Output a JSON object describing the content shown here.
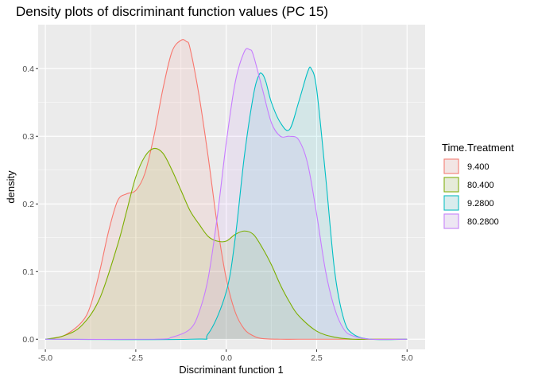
{
  "chart_data": {
    "type": "area",
    "title": "Density plots of discriminant function values (PC 15)",
    "xlabel": "Discriminant function 1",
    "ylabel": "density",
    "xlim": [
      -5.2,
      5.5
    ],
    "ylim": [
      -0.015,
      0.465
    ],
    "x_ticks": [
      -5.0,
      -2.5,
      0.0,
      2.5,
      5.0
    ],
    "x_tick_labels": [
      "-5.0",
      "-2.5",
      "0.0",
      "2.5",
      "5.0"
    ],
    "y_ticks": [
      0.0,
      0.1,
      0.2,
      0.3,
      0.4
    ],
    "y_tick_labels": [
      "0.0",
      "0.1",
      "0.2",
      "0.3",
      "0.4"
    ],
    "grid": true,
    "legend": {
      "title": "Time.Treatment",
      "position": "right"
    },
    "series": [
      {
        "name": "9.400",
        "color": "#F8766D",
        "x": [
          -5.0,
          -4.5,
          -4.0,
          -3.75,
          -3.5,
          -3.25,
          -3.0,
          -2.75,
          -2.5,
          -2.25,
          -2.0,
          -1.75,
          -1.5,
          -1.25,
          -1.1,
          -1.0,
          -0.75,
          -0.5,
          -0.25,
          0.0,
          0.25,
          0.5,
          0.75,
          1.0,
          1.5,
          2.0,
          3.0,
          4.0,
          5.0
        ],
        "values": [
          0.0,
          0.005,
          0.025,
          0.05,
          0.1,
          0.16,
          0.205,
          0.215,
          0.22,
          0.245,
          0.3,
          0.37,
          0.425,
          0.442,
          0.44,
          0.43,
          0.36,
          0.27,
          0.17,
          0.09,
          0.04,
          0.015,
          0.005,
          0.001,
          0.0,
          0.0,
          0.0,
          0.0,
          0.0
        ]
      },
      {
        "name": "80.400",
        "color": "#7CAE00",
        "x": [
          -5.0,
          -4.5,
          -4.0,
          -3.5,
          -3.0,
          -2.75,
          -2.5,
          -2.25,
          -2.0,
          -1.75,
          -1.5,
          -1.25,
          -1.0,
          -0.75,
          -0.5,
          -0.25,
          0.0,
          0.25,
          0.5,
          0.75,
          1.0,
          1.25,
          1.5,
          1.75,
          2.0,
          2.5,
          3.0,
          3.5,
          4.0,
          5.0
        ],
        "values": [
          0.0,
          0.005,
          0.02,
          0.06,
          0.14,
          0.19,
          0.24,
          0.27,
          0.282,
          0.275,
          0.25,
          0.22,
          0.19,
          0.17,
          0.152,
          0.145,
          0.145,
          0.155,
          0.16,
          0.155,
          0.135,
          0.11,
          0.08,
          0.055,
          0.035,
          0.012,
          0.003,
          0.0,
          0.0,
          0.0
        ]
      },
      {
        "name": "9.2800",
        "color": "#00BFC4",
        "x": [
          -5.0,
          -1.0,
          -0.5,
          0.0,
          0.25,
          0.5,
          0.75,
          0.9,
          1.0,
          1.1,
          1.25,
          1.5,
          1.75,
          2.0,
          2.25,
          2.35,
          2.5,
          2.75,
          3.0,
          3.25,
          3.5,
          4.0,
          5.0
        ],
        "values": [
          0.0,
          0.0,
          0.008,
          0.07,
          0.15,
          0.27,
          0.36,
          0.39,
          0.392,
          0.38,
          0.35,
          0.32,
          0.31,
          0.35,
          0.395,
          0.4,
          0.37,
          0.24,
          0.1,
          0.03,
          0.008,
          0.0,
          0.0
        ]
      },
      {
        "name": "80.2800",
        "color": "#C77CFF",
        "x": [
          -5.0,
          -2.0,
          -1.5,
          -1.0,
          -0.75,
          -0.5,
          -0.25,
          0.0,
          0.25,
          0.5,
          0.65,
          0.75,
          1.0,
          1.25,
          1.5,
          1.75,
          2.0,
          2.25,
          2.5,
          2.75,
          3.0,
          3.25,
          3.5,
          4.0,
          5.0
        ],
        "values": [
          0.0,
          0.0,
          0.003,
          0.015,
          0.04,
          0.09,
          0.18,
          0.29,
          0.38,
          0.425,
          0.428,
          0.42,
          0.37,
          0.32,
          0.3,
          0.3,
          0.295,
          0.26,
          0.185,
          0.1,
          0.045,
          0.015,
          0.005,
          0.0,
          0.0
        ]
      }
    ]
  }
}
